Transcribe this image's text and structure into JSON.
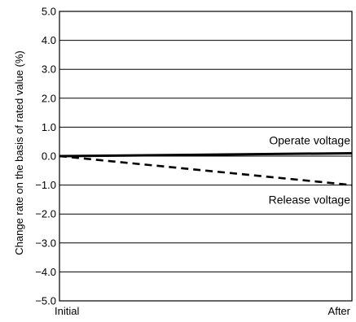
{
  "chart_data": {
    "type": "line",
    "ylabel": "Change rate on the basis of rated value (%)",
    "ylim": [
      -5.0,
      5.0
    ],
    "yticks": [
      "5.0",
      "4.0",
      "3.0",
      "2.0",
      "1.0",
      "0.0",
      "−1.0",
      "−2.0",
      "−3.0",
      "−4.0",
      "−5.0"
    ],
    "ytick_values": [
      5,
      4,
      3,
      2,
      1,
      0,
      -1,
      -2,
      -3,
      -4,
      -5
    ],
    "xticks": [
      "Initial",
      "After"
    ],
    "x": [
      0,
      1
    ],
    "grid": true,
    "series": [
      {
        "name": "Operate voltage",
        "values": [
          0.0,
          0.1
        ],
        "style": "solid",
        "color": "#000000"
      },
      {
        "name": "Release voltage",
        "values": [
          0.0,
          -1.0
        ],
        "style": "dashed",
        "color": "#000000"
      }
    ]
  }
}
